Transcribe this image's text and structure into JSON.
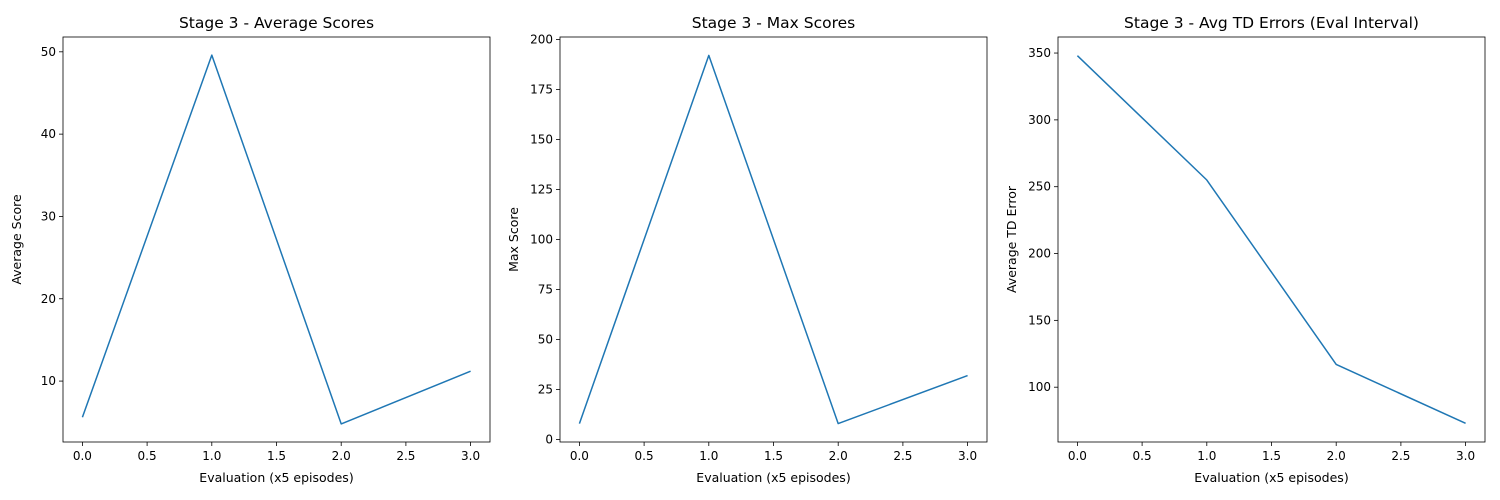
{
  "chart_data": [
    {
      "type": "line",
      "title": "Stage 3 - Average Scores",
      "xlabel": "Evaluation (x5 episodes)",
      "ylabel": "Average Score",
      "x": [
        0,
        1,
        2,
        3
      ],
      "series": [
        {
          "values": [
            5.6,
            49.6,
            4.8,
            11.2
          ]
        }
      ],
      "xlim": [
        -0.15,
        3.15
      ],
      "ylim": [
        2.6,
        51.8
      ],
      "xticks": [
        0.0,
        0.5,
        1.0,
        1.5,
        2.0,
        2.5,
        3.0
      ],
      "yticks": [
        10,
        20,
        30,
        40,
        50
      ],
      "grid": false,
      "line_color": "#1f77b4"
    },
    {
      "type": "line",
      "title": "Stage 3 - Max Scores",
      "xlabel": "Evaluation (x5 episodes)",
      "ylabel": "Max Score",
      "x": [
        0,
        1,
        2,
        3
      ],
      "series": [
        {
          "values": [
            8,
            192,
            8,
            32
          ]
        }
      ],
      "xlim": [
        -0.15,
        3.15
      ],
      "ylim": [
        -1.2,
        201.2
      ],
      "xticks": [
        0.0,
        0.5,
        1.0,
        1.5,
        2.0,
        2.5,
        3.0
      ],
      "yticks": [
        0,
        25,
        50,
        75,
        100,
        125,
        150,
        175,
        200
      ],
      "grid": false,
      "line_color": "#1f77b4"
    },
    {
      "type": "line",
      "title": "Stage 3 - Avg TD Errors (Eval Interval)",
      "xlabel": "Evaluation (x5 episodes)",
      "ylabel": "Average TD Error",
      "x": [
        0,
        1,
        2,
        3
      ],
      "series": [
        {
          "values": [
            348,
            255,
            117,
            73
          ]
        }
      ],
      "xlim": [
        -0.15,
        3.15
      ],
      "ylim": [
        59,
        362
      ],
      "xticks": [
        0.0,
        0.5,
        1.0,
        1.5,
        2.0,
        2.5,
        3.0
      ],
      "yticks": [
        100,
        150,
        200,
        250,
        300,
        350
      ],
      "grid": false,
      "line_color": "#1f77b4"
    }
  ]
}
